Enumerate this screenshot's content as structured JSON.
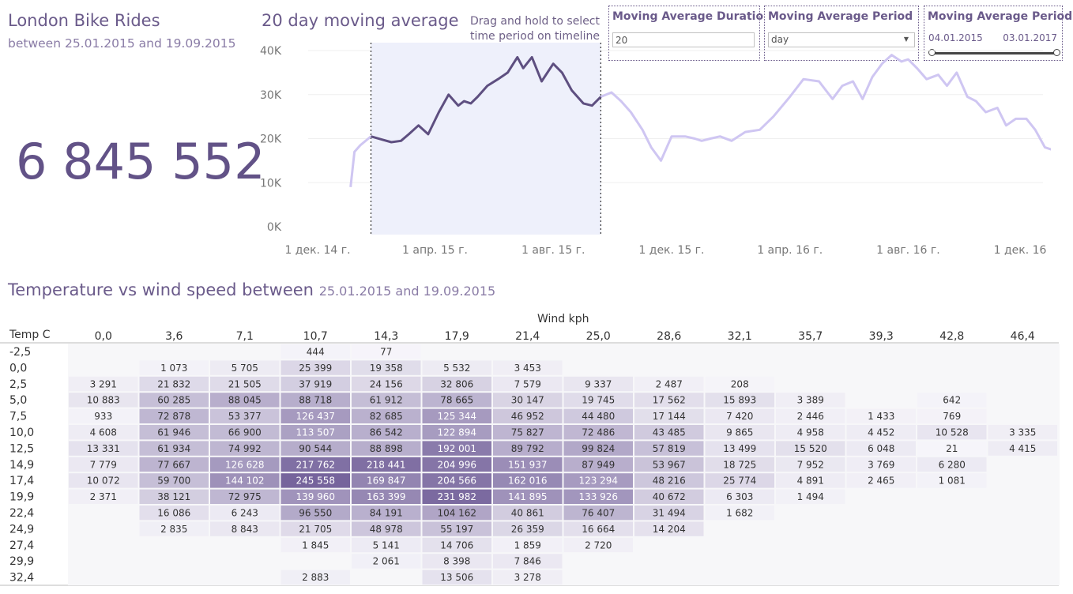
{
  "header": {
    "title": "London Bike Rides",
    "subtitle": "between 25.01.2015 and 19.09.2015",
    "total_rides": "6 845 552"
  },
  "moving_average_panel": {
    "title": "20 day moving average",
    "drag_hint": "Drag and hold to select time period on timeline"
  },
  "controls": {
    "duration": {
      "label": "Moving Average Duration",
      "value": "20"
    },
    "period": {
      "label": "Moving Average Period",
      "value": "day"
    },
    "range": {
      "label": "Moving Average Period",
      "start": "04.01.2015",
      "end": "03.01.2017"
    }
  },
  "heatmap_header": {
    "title": "Temperature vs wind speed between",
    "range": "25.01.2015 and 19.09.2015",
    "wind_axis_label": "Wind kph",
    "temp_axis_label": "Temp C"
  },
  "colors": {
    "title_purple": "#6a5a8a",
    "line_selected": "#5e4f80",
    "line_unselected": "#cfc6f2",
    "selection_fill": "#eef0fb",
    "heat_max": "#7a68a0"
  },
  "chart_data": [
    {
      "type": "line",
      "title": "20 day moving average",
      "xlabel": "",
      "ylabel": "",
      "x_tick_labels": [
        "1 дек. 14 г.",
        "1 апр. 15 г.",
        "1 авг. 15 г.",
        "1 дек. 15 г.",
        "1 апр. 16 г.",
        "1 авг. 16 г.",
        "1 дек. 16 г."
      ],
      "x_tick_dates": [
        "2014-12-01",
        "2015-04-01",
        "2015-08-01",
        "2015-12-01",
        "2016-04-01",
        "2016-08-01",
        "2016-12-01"
      ],
      "y_tick_labels": [
        "0K",
        "10K",
        "20K",
        "30K",
        "40K"
      ],
      "ylim": [
        0,
        40000
      ],
      "selection": {
        "start": "2015-01-25",
        "end": "2015-09-19"
      },
      "series": [
        {
          "x": [
            "2015-01-04",
            "2015-01-08",
            "2015-01-14",
            "2015-01-25",
            "2015-02-05",
            "2015-02-15",
            "2015-02-25",
            "2015-03-05",
            "2015-03-15",
            "2015-03-25",
            "2015-04-05",
            "2015-04-15",
            "2015-04-25",
            "2015-05-01",
            "2015-05-08",
            "2015-05-15",
            "2015-05-25",
            "2015-06-05",
            "2015-06-15",
            "2015-06-25",
            "2015-07-01",
            "2015-07-10",
            "2015-07-20",
            "2015-08-01",
            "2015-08-10",
            "2015-08-20",
            "2015-09-01",
            "2015-09-10",
            "2015-09-19",
            "2015-09-30",
            "2015-10-10",
            "2015-10-20",
            "2015-11-01",
            "2015-11-10",
            "2015-11-20",
            "2015-12-01",
            "2015-12-15",
            "2015-12-25",
            "2016-01-01",
            "2016-01-10",
            "2016-01-20",
            "2016-02-01",
            "2016-02-15",
            "2016-03-01",
            "2016-03-15",
            "2016-04-01",
            "2016-04-15",
            "2016-05-01",
            "2016-05-15",
            "2016-05-25",
            "2016-06-05",
            "2016-06-15",
            "2016-06-25",
            "2016-07-05",
            "2016-07-15",
            "2016-07-25",
            "2016-08-01",
            "2016-08-10",
            "2016-08-20",
            "2016-09-01",
            "2016-09-10",
            "2016-09-20",
            "2016-10-01",
            "2016-10-10",
            "2016-10-20",
            "2016-11-01",
            "2016-11-10",
            "2016-11-20",
            "2016-12-01",
            "2016-12-10",
            "2016-12-20",
            "2017-01-03"
          ],
          "y": [
            9000,
            17000,
            18500,
            20500,
            19800,
            19200,
            19500,
            21000,
            23000,
            21000,
            26000,
            30000,
            27500,
            28500,
            28000,
            29500,
            32000,
            33500,
            35000,
            38500,
            36000,
            38500,
            33000,
            37000,
            35000,
            31000,
            28000,
            27500,
            29500,
            30500,
            28500,
            26000,
            22000,
            18000,
            15000,
            20500,
            20500,
            20000,
            19500,
            20000,
            20500,
            19500,
            21500,
            22000,
            25000,
            29500,
            33500,
            33000,
            29000,
            32000,
            33000,
            29000,
            34000,
            37000,
            39000,
            37500,
            38000,
            36000,
            33500,
            34500,
            32000,
            35000,
            29500,
            28500,
            26000,
            27000,
            23000,
            24500,
            24500,
            22000,
            18000,
            17000
          ]
        }
      ]
    },
    {
      "type": "heatmap",
      "title": "Temperature vs wind speed between 25.01.2015 and 19.09.2015",
      "xlabel": "Wind kph",
      "ylabel": "Temp C",
      "columns": [
        "0,0",
        "3,6",
        "7,1",
        "10,7",
        "14,3",
        "17,9",
        "21,4",
        "25,0",
        "28,6",
        "32,1",
        "35,7",
        "39,3",
        "42,8",
        "46,4"
      ],
      "rows": [
        "-2,5",
        "0,0",
        "2,5",
        "5,0",
        "7,5",
        "10,0",
        "12,5",
        "14,9",
        "17,4",
        "19,9",
        "22,4",
        "24,9",
        "27,4",
        "29,9",
        "32,4"
      ],
      "values": [
        [
          null,
          null,
          null,
          444,
          77,
          null,
          null,
          null,
          null,
          null,
          null,
          null,
          null,
          null
        ],
        [
          null,
          1073,
          5705,
          25399,
          19358,
          5532,
          3453,
          null,
          null,
          null,
          null,
          null,
          null,
          null
        ],
        [
          3291,
          21832,
          21505,
          37919,
          24156,
          32806,
          7579,
          9337,
          2487,
          208,
          null,
          null,
          null,
          null
        ],
        [
          10883,
          60285,
          88045,
          88718,
          61912,
          78665,
          30147,
          19745,
          17562,
          15893,
          3389,
          null,
          642,
          null
        ],
        [
          933,
          72878,
          53377,
          126437,
          82685,
          125344,
          46952,
          44480,
          17144,
          7420,
          2446,
          1433,
          769,
          null
        ],
        [
          4608,
          61946,
          66900,
          113507,
          86542,
          122894,
          75827,
          72486,
          43485,
          9865,
          4958,
          4452,
          10528,
          3335
        ],
        [
          13331,
          61934,
          74992,
          90544,
          88898,
          192001,
          89792,
          99824,
          57819,
          13499,
          15520,
          6048,
          21,
          4415
        ],
        [
          7779,
          77667,
          126628,
          217762,
          218441,
          204996,
          151937,
          87949,
          53967,
          18725,
          7952,
          3769,
          6280,
          null
        ],
        [
          10072,
          59700,
          144102,
          245558,
          169847,
          204566,
          162016,
          123294,
          48216,
          25774,
          4891,
          2465,
          1081,
          null
        ],
        [
          2371,
          38121,
          72975,
          139960,
          163399,
          231982,
          141895,
          133926,
          40672,
          6303,
          1494,
          null,
          null,
          null
        ],
        [
          null,
          16086,
          6243,
          96550,
          84191,
          104162,
          40861,
          76407,
          31494,
          1682,
          null,
          null,
          null,
          null
        ],
        [
          null,
          2835,
          8843,
          21705,
          48978,
          55197,
          26359,
          16664,
          14204,
          null,
          null,
          null,
          null,
          null
        ],
        [
          null,
          null,
          null,
          1845,
          5141,
          14706,
          1859,
          2720,
          null,
          null,
          null,
          null,
          null,
          null
        ],
        [
          null,
          null,
          null,
          null,
          2061,
          8398,
          7846,
          null,
          null,
          null,
          null,
          null,
          null,
          null
        ],
        [
          null,
          null,
          null,
          2883,
          null,
          13506,
          3278,
          null,
          null,
          null,
          null,
          null,
          null,
          null
        ]
      ]
    }
  ]
}
